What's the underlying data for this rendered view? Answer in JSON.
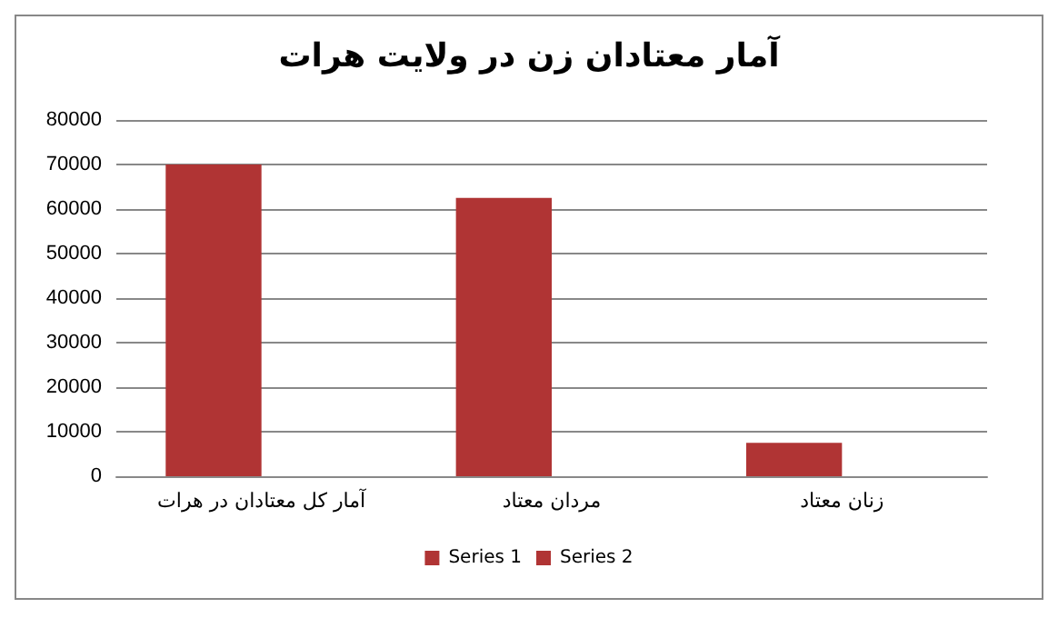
{
  "chart_data": {
    "type": "bar",
    "title": "آمار معتادان زن در ولایت هرات",
    "categories": [
      "آمار کل معتادان در هرات",
      "مردان معتاد",
      "زنان معتاد"
    ],
    "series": [
      {
        "name": "Series 1",
        "color": "#b03434",
        "values": [
          70000,
          62500,
          7500
        ]
      },
      {
        "name": "Series 2",
        "color": "#b03434",
        "values": [
          0,
          0,
          0
        ]
      }
    ],
    "ylim": [
      0,
      80000
    ],
    "yticks": [
      0,
      10000,
      20000,
      30000,
      40000,
      50000,
      60000,
      70000,
      80000
    ],
    "grid": "y",
    "legend": "bottom"
  }
}
